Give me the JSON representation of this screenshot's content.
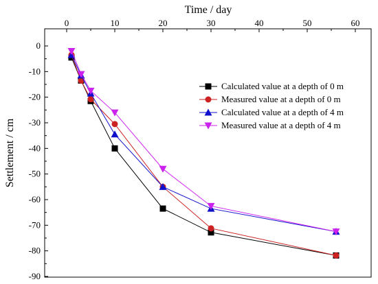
{
  "chart_data": {
    "type": "line",
    "xlabel": "Time / day",
    "ylabel": "Settlement / cm",
    "xlim": [
      -5,
      60
    ],
    "ylim": [
      -90,
      5
    ],
    "x_ticks": [
      0,
      10,
      20,
      30,
      40,
      50,
      60
    ],
    "y_ticks": [
      0,
      -10,
      -20,
      -30,
      -40,
      -50,
      -60,
      -70,
      -80,
      -90
    ],
    "x_axis_position": "top",
    "grid": false,
    "legend_position": "right",
    "series": [
      {
        "name": "Calculated value at a depth of 0 m",
        "color": "#000000",
        "marker": "square",
        "x": [
          1,
          3,
          5,
          10,
          20,
          30,
          56
        ],
        "y": [
          -4.5,
          -13.5,
          -21.5,
          -40,
          -63.5,
          -72.8,
          -81.8
        ]
      },
      {
        "name": "Measured value at a depth of 0 m",
        "color": "#cc2222",
        "marker": "circle",
        "x": [
          1,
          3,
          5,
          10,
          20,
          30,
          56
        ],
        "y": [
          -3.5,
          -13.5,
          -20.8,
          -30.5,
          -55,
          -71.2,
          -81.8
        ]
      },
      {
        "name": "Calculated value at a depth of 4 m",
        "color": "#1010cc",
        "marker": "triangle-up",
        "x": [
          1,
          3,
          5,
          10,
          20,
          30,
          56
        ],
        "y": [
          -3.5,
          -11.5,
          -18.5,
          -34.5,
          -55,
          -63.5,
          -72.5
        ]
      },
      {
        "name": "Measured value at a depth of 4 m",
        "color": "#cc22ee",
        "marker": "triangle-down",
        "x": [
          1,
          3,
          5,
          10,
          20,
          30,
          56
        ],
        "y": [
          -2,
          -11,
          -17.5,
          -26,
          -48,
          -62.5,
          -72.5
        ]
      }
    ]
  }
}
